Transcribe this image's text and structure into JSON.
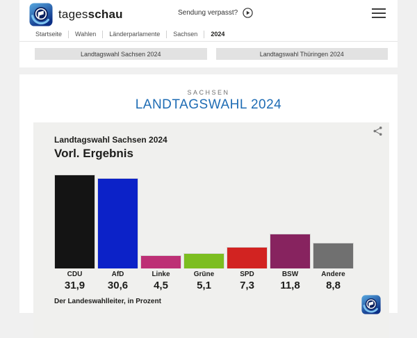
{
  "header": {
    "brand": {
      "regular": "tages",
      "bold": "schau"
    },
    "sendung_verpasst_label": "Sendung verpasst?",
    "breadcrumb": [
      "Startseite",
      "Wahlen",
      "Länderparlamente",
      "Sachsen",
      "2024"
    ],
    "nav_buttons": [
      "Landtagswahl Sachsen 2024",
      "Landtagswahl Thüringen 2024"
    ]
  },
  "page": {
    "kicker": "SACHSEN",
    "title": "LANDTAGSWAHL 2024"
  },
  "chart_card": {
    "title": "Landtagswahl Sachsen 2024",
    "subtitle": "Vorl. Ergebnis",
    "source": "Der Landeswahlleiter, in Prozent"
  },
  "chart_data": {
    "type": "bar",
    "title": "Landtagswahl Sachsen 2024 – Vorl. Ergebnis",
    "categories": [
      "CDU",
      "AfD",
      "Linke",
      "Grüne",
      "SPD",
      "BSW",
      "Andere"
    ],
    "values": [
      31.9,
      30.6,
      4.5,
      5.1,
      7.3,
      11.8,
      8.8
    ],
    "value_labels": [
      "31,9",
      "30,6",
      "4,5",
      "5,1",
      "7,3",
      "11,8",
      "8,8"
    ],
    "colors": {
      "CDU": "#141414",
      "AfD": "#0c22c8",
      "Linke": "#bd3075",
      "Grüne": "#7cbe20",
      "SPD": "#d22321",
      "BSW": "#87235f",
      "Andere": "#707070"
    },
    "unit": "Prozent",
    "ylim": [
      0,
      33
    ],
    "grid": false,
    "legend": false
  },
  "colors": {
    "accent_blue": "#1e6cb4",
    "card_bg": "#f0f0ee",
    "page_bg": "#f0f0f0"
  }
}
